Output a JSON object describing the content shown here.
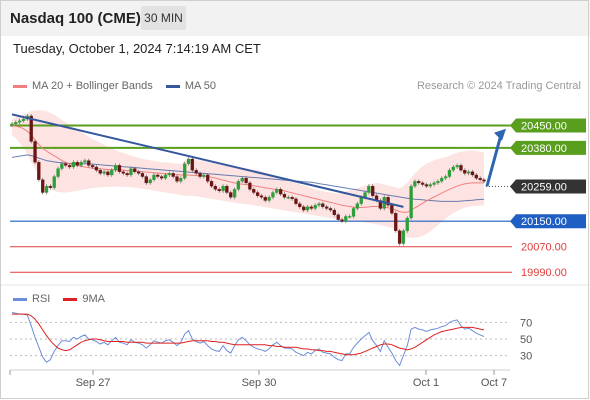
{
  "header": {
    "title": "Nasdaq 100 (CME)",
    "timeframe": "30 MIN"
  },
  "datetime": "Tuesday, October 1, 2024 7:14:19 AM CET",
  "legend": {
    "ma20": "MA 20 + Bollinger Bands",
    "ma50": "MA 50"
  },
  "credit": "Research © 2024 Trading Central",
  "rsi_legend": {
    "rsi": "RSI",
    "ma9": "9MA"
  },
  "colors": {
    "bull": "#2e9e3a",
    "bear": "#6b1414",
    "ma20": "#f08080",
    "ma50": "#35579e",
    "bollinger_fill": "#fde4e2",
    "trendline": "#35579e",
    "arrow": "#2e64b0",
    "resistance": "#5a9e1e",
    "support": "#1f5fc4",
    "target": "#e33d3d",
    "rsi": "#6a8fd8",
    "rsi_ma": "#e02020"
  },
  "chart_data": {
    "type": "candlestick",
    "price_axis": {
      "min": 19950,
      "max": 20530
    },
    "x_tick_labels": [
      "Sep 27",
      "Sep 30",
      "Oct 1",
      "Oct 7"
    ],
    "current_price": {
      "value": 20259.0,
      "label": "20259.00"
    },
    "levels": [
      {
        "value": 20450,
        "label": "20450.00",
        "kind": "resistance"
      },
      {
        "value": 20380,
        "label": "20380.00",
        "kind": "resistance"
      },
      {
        "value": 20150,
        "label": "20150.00",
        "kind": "support"
      },
      {
        "value": 20070,
        "label": "20070.00",
        "kind": "target"
      },
      {
        "value": 19990,
        "label": "19990.00",
        "kind": "target"
      }
    ],
    "trendline": {
      "start": {
        "bar": 0,
        "price": 20485
      },
      "end": {
        "bar": 102,
        "price": 20195
      }
    },
    "forecast_arrow": {
      "from_price": 20260,
      "to_price": 20440
    },
    "close": [
      20455,
      20460,
      20465,
      20470,
      20480,
      20400,
      20335,
      20280,
      20240,
      20260,
      20255,
      20290,
      20315,
      20330,
      20325,
      20320,
      20335,
      20325,
      20335,
      20340,
      20325,
      20320,
      20310,
      20300,
      20305,
      20295,
      20310,
      20325,
      20305,
      20300,
      20295,
      20315,
      20305,
      20300,
      20290,
      20270,
      20280,
      20295,
      20290,
      20285,
      20295,
      20300,
      20290,
      20275,
      20285,
      20330,
      20345,
      20310,
      20300,
      20290,
      20295,
      20275,
      20260,
      20250,
      20245,
      20260,
      20240,
      20225,
      20250,
      20275,
      20285,
      20270,
      20250,
      20240,
      20230,
      20225,
      20215,
      20225,
      20240,
      20250,
      20235,
      20225,
      20225,
      20220,
      20205,
      20195,
      20185,
      20195,
      20190,
      20200,
      20205,
      20195,
      20190,
      20185,
      20170,
      20155,
      20150,
      20165,
      20165,
      20190,
      20205,
      20225,
      20240,
      20260,
      20230,
      20215,
      20190,
      20225,
      20200,
      20175,
      20120,
      20080,
      20120,
      20160,
      20260,
      20275,
      20270,
      20265,
      20260,
      20265,
      20270,
      20275,
      20285,
      20290,
      20310,
      20320,
      20325,
      20310,
      20300,
      20305,
      20295,
      20285,
      20280,
      20275
    ],
    "ma20": [
      20450,
      20448,
      20445,
      20440,
      20432,
      20420,
      20405,
      20390,
      20378,
      20370,
      20362,
      20355,
      20348,
      20340,
      20335,
      20330,
      20327,
      20325,
      20322,
      20320,
      20318,
      20316,
      20315,
      20314,
      20313,
      20312,
      20312,
      20312,
      20311,
      20310,
      20309,
      20308,
      20307,
      20306,
      20305,
      20304,
      20303,
      20302,
      20301,
      20300,
      20299,
      20298,
      20297,
      20296,
      20295,
      20295,
      20295,
      20294,
      20293,
      20292,
      20291,
      20290,
      20288,
      20285,
      20282,
      20279,
      20276,
      20273,
      20270,
      20268,
      20266,
      20265,
      20263,
      20261,
      20259,
      20257,
      20255,
      20253,
      20251,
      20249,
      20247,
      20245,
      20242,
      20239,
      20236,
      20233,
      20230,
      20227,
      20224,
      20221,
      20218,
      20215,
      20212,
      20209,
      20206,
      20203,
      20200,
      20198,
      20196,
      20194,
      20193,
      20193,
      20194,
      20195,
      20196,
      20196,
      20195,
      20194,
      20192,
      20189,
      20185,
      20180,
      20178,
      20178,
      20185,
      20192,
      20199,
      20206,
      20213,
      20220,
      20226,
      20232,
      20238,
      20244,
      20250,
      20255,
      20260,
      20264,
      20267,
      20269,
      20270,
      20270,
      20270,
      20270
    ],
    "bb_upper": [
      20470,
      20475,
      20480,
      20485,
      20490,
      20495,
      20497,
      20498,
      20497,
      20495,
      20490,
      20484,
      20476,
      20468,
      20460,
      20452,
      20444,
      20436,
      20429,
      20422,
      20415,
      20408,
      20402,
      20396,
      20390,
      20384,
      20378,
      20373,
      20368,
      20364,
      20360,
      20356,
      20352,
      20349,
      20346,
      20343,
      20341,
      20339,
      20337,
      20335,
      20334,
      20333,
      20332,
      20331,
      20330,
      20340,
      20345,
      20344,
      20342,
      20340,
      20338,
      20336,
      20334,
      20332,
      20330,
      20328,
      20326,
      20324,
      20322,
      20320,
      20318,
      20316,
      20314,
      20312,
      20310,
      20306,
      20302,
      20298,
      20294,
      20290,
      20286,
      20282,
      20278,
      20274,
      20270,
      20266,
      20262,
      20258,
      20254,
      20250,
      20246,
      20244,
      20242,
      20240,
      20238,
      20236,
      20240,
      20243,
      20246,
      20250,
      20254,
      20258,
      20262,
      20266,
      20268,
      20270,
      20268,
      20265,
      20262,
      20259,
      20256,
      20253,
      20260,
      20270,
      20285,
      20300,
      20312,
      20322,
      20330,
      20336,
      20341,
      20345,
      20348,
      20351,
      20355,
      20360,
      20365,
      20368,
      20370,
      20371,
      20372,
      20370,
      20368,
      20365
    ],
    "bb_lower": [
      20420,
      20410,
      20395,
      20380,
      20360,
      20335,
      20315,
      20295,
      20275,
      20260,
      20250,
      20245,
      20242,
      20240,
      20240,
      20241,
      20243,
      20245,
      20247,
      20250,
      20252,
      20254,
      20255,
      20256,
      20257,
      20258,
      20258,
      20258,
      20258,
      20258,
      20257,
      20256,
      20255,
      20254,
      20252,
      20250,
      20248,
      20246,
      20244,
      20242,
      20240,
      20238,
      20236,
      20234,
      20232,
      20230,
      20230,
      20229,
      20228,
      20226,
      20224,
      20222,
      20220,
      20218,
      20216,
      20214,
      20212,
      20210,
      20208,
      20206,
      20205,
      20204,
      20202,
      20200,
      20198,
      20196,
      20194,
      20192,
      20190,
      20188,
      20186,
      20184,
      20182,
      20180,
      20178,
      20176,
      20174,
      20172,
      20170,
      20168,
      20166,
      20164,
      20162,
      20160,
      20158,
      20156,
      20155,
      20154,
      20153,
      20152,
      20150,
      20148,
      20146,
      20144,
      20142,
      20140,
      20138,
      20135,
      20132,
      20128,
      20120,
      20112,
      20105,
      20100,
      20098,
      20098,
      20100,
      20104,
      20110,
      20118,
      20128,
      20138,
      20148,
      20158,
      20168,
      20175,
      20182,
      20188,
      20192,
      20195,
      20197,
      20198,
      20199,
      20199
    ],
    "ma50": [
      20350,
      20352,
      20354,
      20356,
      20358,
      20356,
      20352,
      20348,
      20344,
      20340,
      20338,
      20336,
      20334,
      20333,
      20332,
      20331,
      20330,
      20330,
      20330,
      20330,
      20330,
      20329,
      20328,
      20327,
      20326,
      20325,
      20324,
      20323,
      20322,
      20321,
      20320,
      20319,
      20318,
      20317,
      20316,
      20315,
      20314,
      20313,
      20312,
      20311,
      20310,
      20309,
      20308,
      20307,
      20306,
      20305,
      20304,
      20303,
      20302,
      20301,
      20300,
      20299,
      20298,
      20297,
      20296,
      20295,
      20294,
      20293,
      20292,
      20291,
      20290,
      20289,
      20288,
      20287,
      20286,
      20285,
      20284,
      20283,
      20282,
      20281,
      20280,
      20279,
      20278,
      20277,
      20276,
      20275,
      20274,
      20273,
      20272,
      20270,
      20268,
      20266,
      20264,
      20262,
      20260,
      20258,
      20256,
      20254,
      20252,
      20250,
      20248,
      20246,
      20244,
      20242,
      20240,
      20238,
      20236,
      20234,
      20232,
      20230,
      20228,
      20226,
      20224,
      20222,
      20220,
      20219,
      20218,
      20217,
      20216,
      20215,
      20214,
      20213,
      20212,
      20212,
      20212,
      20212,
      20212,
      20213,
      20214,
      20215,
      20216,
      20217,
      20218,
      20219
    ],
    "rsi_axis": {
      "min": 15,
      "max": 85,
      "ticks": [
        70,
        50,
        30
      ]
    },
    "rsi": [
      82,
      81,
      80,
      80,
      79,
      66,
      52,
      40,
      28,
      22,
      25,
      35,
      42,
      48,
      48,
      47,
      52,
      50,
      53,
      55,
      50,
      49,
      47,
      44,
      46,
      43,
      48,
      52,
      46,
      45,
      43,
      49,
      46,
      45,
      43,
      39,
      43,
      48,
      46,
      45,
      48,
      49,
      46,
      42,
      46,
      56,
      60,
      50,
      47,
      45,
      47,
      42,
      38,
      36,
      35,
      42,
      36,
      33,
      42,
      49,
      52,
      48,
      43,
      40,
      38,
      37,
      35,
      38,
      43,
      46,
      42,
      39,
      39,
      38,
      34,
      32,
      30,
      34,
      32,
      36,
      38,
      34,
      33,
      32,
      28,
      25,
      24,
      32,
      32,
      40,
      45,
      50,
      54,
      58,
      48,
      42,
      35,
      48,
      40,
      33,
      24,
      18,
      30,
      42,
      62,
      64,
      62,
      61,
      59,
      61,
      62,
      63,
      65,
      66,
      70,
      72,
      73,
      66,
      62,
      63,
      60,
      57,
      55,
      53
    ],
    "rsi_ma": [
      80,
      80,
      80,
      80,
      80,
      78,
      74,
      68,
      61,
      54,
      48,
      43,
      39,
      37,
      36,
      37,
      40,
      43,
      46,
      48,
      49,
      50,
      50,
      49,
      48,
      47,
      47,
      47,
      47,
      47,
      46,
      46,
      46,
      46,
      46,
      45,
      45,
      45,
      45,
      45,
      45,
      45,
      45,
      45,
      45,
      46,
      47,
      48,
      48,
      48,
      48,
      48,
      47,
      47,
      46,
      46,
      45,
      44,
      43,
      43,
      43,
      43,
      43,
      43,
      43,
      43,
      43,
      42,
      42,
      41,
      41,
      40,
      40,
      40,
      40,
      39,
      38,
      38,
      37,
      37,
      36,
      36,
      35,
      35,
      34,
      33,
      32,
      31,
      31,
      31,
      32,
      33,
      35,
      37,
      39,
      41,
      43,
      44,
      44,
      43,
      41,
      39,
      38,
      37,
      38,
      40,
      43,
      46,
      49,
      52,
      55,
      57,
      59,
      60,
      61,
      62,
      63,
      64,
      64,
      64,
      64,
      63,
      62,
      61
    ]
  }
}
